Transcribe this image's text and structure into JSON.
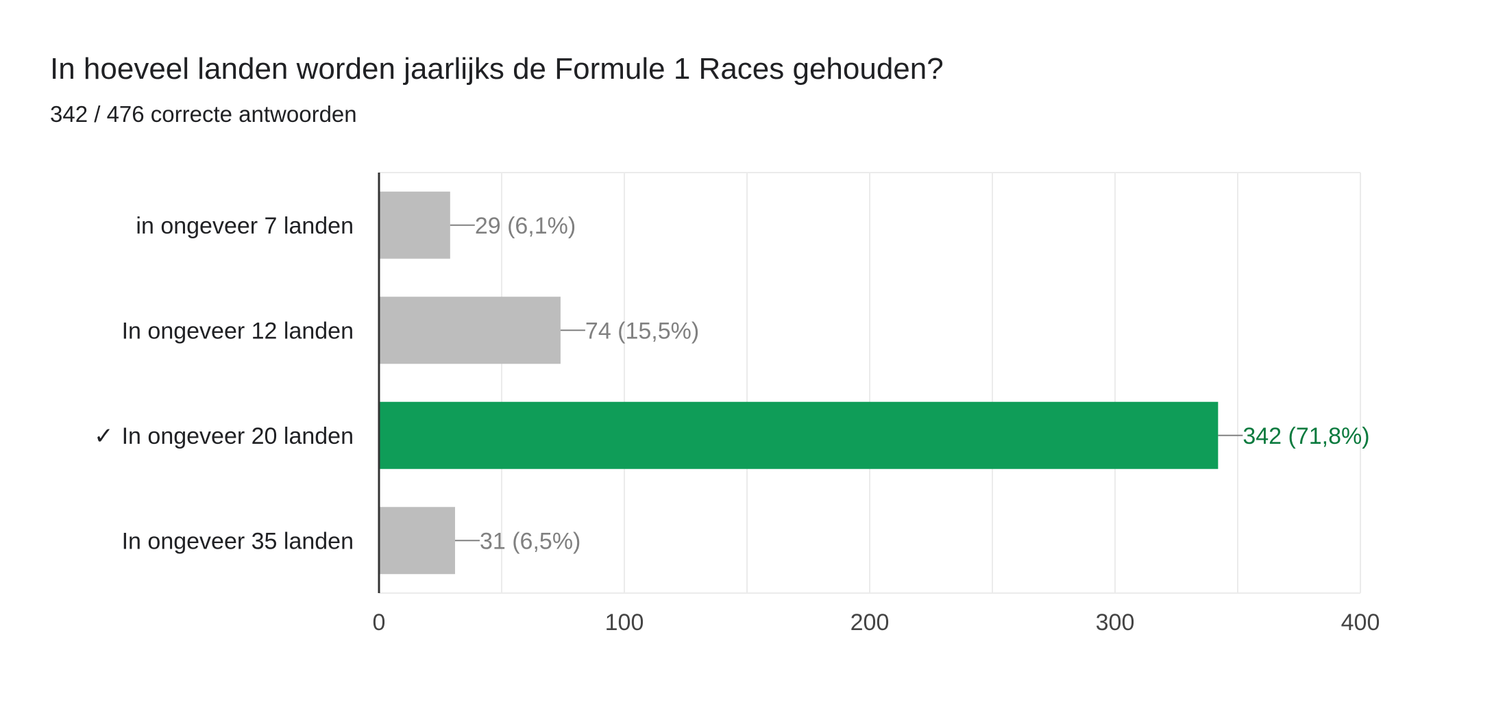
{
  "header": {
    "title": "In hoeveel landen worden jaarlijks de Formule 1 Races gehouden?",
    "subtitle": "342 / 476 correcte antwoorden"
  },
  "chart_data": {
    "type": "bar",
    "orientation": "horizontal",
    "categories": [
      "in ongeveer 7 landen",
      "In ongeveer 12 landen",
      "In ongeveer 20 landen",
      "In ongeveer 35 landen"
    ],
    "values": [
      29,
      74,
      342,
      31
    ],
    "data_labels": [
      "29 (6,1%)",
      "74 (15,5%)",
      "342 (71,8%)",
      "31 (6,5%)"
    ],
    "correct_marker": "✓",
    "correct_index": 2,
    "xlim": [
      0,
      400
    ],
    "xticks": [
      0,
      100,
      200,
      300,
      400
    ],
    "grid": true,
    "colors": {
      "bar": "#bdbdbd",
      "correct_bar": "#0f9d58",
      "label": "#808080",
      "correct_label": "#0b7a3e",
      "grid": "#ebebeb",
      "axis": "#333333",
      "text": "#202124"
    }
  }
}
